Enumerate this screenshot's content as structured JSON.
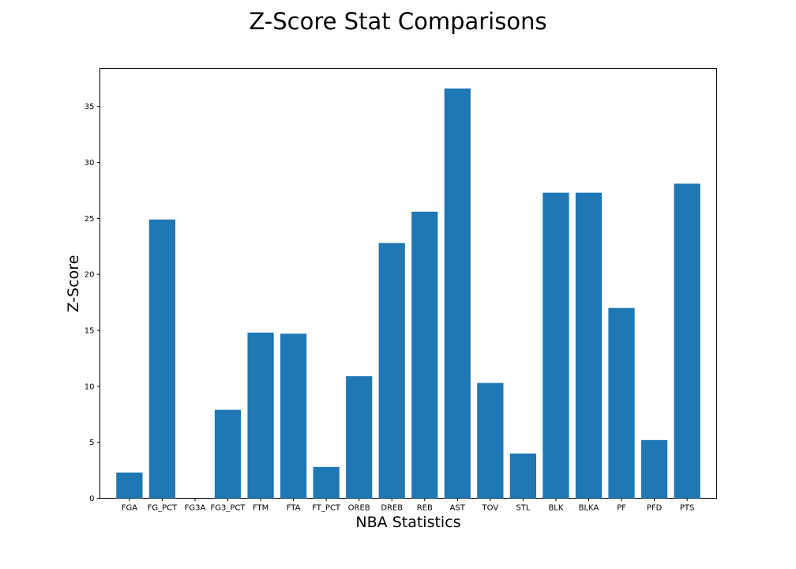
{
  "chart_data": {
    "type": "bar",
    "title": "Z-Score Stat Comparisons",
    "xlabel": "NBA Statistics",
    "ylabel": "Z-Score",
    "categories": [
      "FGA",
      "FG_PCT",
      "FG3A",
      "FG3_PCT",
      "FTM",
      "FTA",
      "FT_PCT",
      "OREB",
      "DREB",
      "REB",
      "AST",
      "TOV",
      "STL",
      "BLK",
      "BLKA",
      "PF",
      "PFD",
      "PTS"
    ],
    "values": [
      2.3,
      24.9,
      0.0,
      7.9,
      14.8,
      14.7,
      2.8,
      10.9,
      22.8,
      25.6,
      36.6,
      10.3,
      4.0,
      27.3,
      27.3,
      17.0,
      5.2,
      28.1
    ],
    "yticks": [
      0,
      5,
      10,
      15,
      20,
      25,
      30,
      35
    ],
    "ylim": [
      0,
      38.4
    ],
    "grid": false,
    "bar_color": "#1f77b4"
  }
}
